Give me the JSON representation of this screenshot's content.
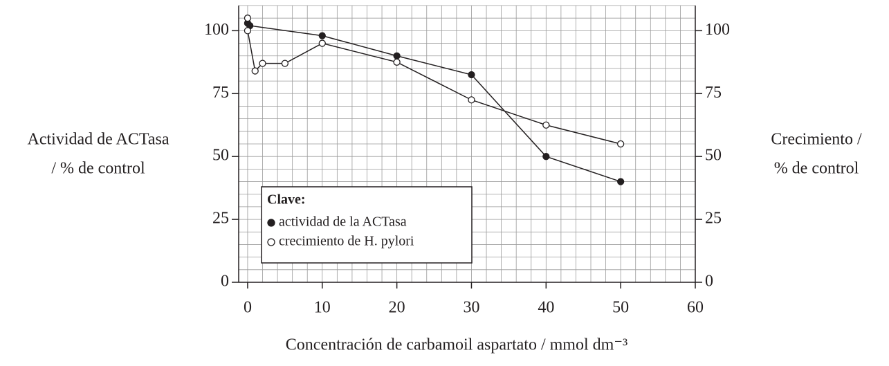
{
  "chart_data": {
    "type": "line",
    "ylabel": [
      "Actividad de ACTasa",
      "/ % de control"
    ],
    "y2label": [
      "Crecimiento  /",
      "% de control"
    ],
    "xlabel": "Concentración de carbamoil aspartato / mmol dm⁻³",
    "xlim": [
      -1.2,
      60
    ],
    "xticks": [
      0,
      10,
      20,
      30,
      40,
      50,
      60
    ],
    "ylim": [
      0,
      110
    ],
    "yticks": [
      0,
      25,
      50,
      75,
      100
    ],
    "y2lim": [
      0,
      110
    ],
    "y2ticks": [
      0,
      25,
      50,
      75,
      100
    ],
    "grid": true,
    "minor_grid": {
      "x": 2,
      "y": 5
    },
    "legend_title": "Clave:",
    "legend": "lower left",
    "series": [
      {
        "name": "actividad de la ACTasa",
        "color": "#231f20",
        "marker": "filled",
        "x": [
          0,
          0.3,
          10,
          20,
          30,
          40,
          50
        ],
        "values": [
          103,
          102,
          98,
          90,
          82.5,
          50,
          40
        ]
      },
      {
        "name": "crecimiento de H. pylori",
        "color": "#231f20",
        "marker": "open",
        "axis": "y2",
        "x": [
          0,
          0,
          1,
          2,
          5,
          10,
          20,
          30,
          40,
          50
        ],
        "values": [
          105,
          100,
          84,
          87,
          87,
          95,
          87.5,
          72.5,
          62.5,
          55
        ]
      }
    ]
  }
}
